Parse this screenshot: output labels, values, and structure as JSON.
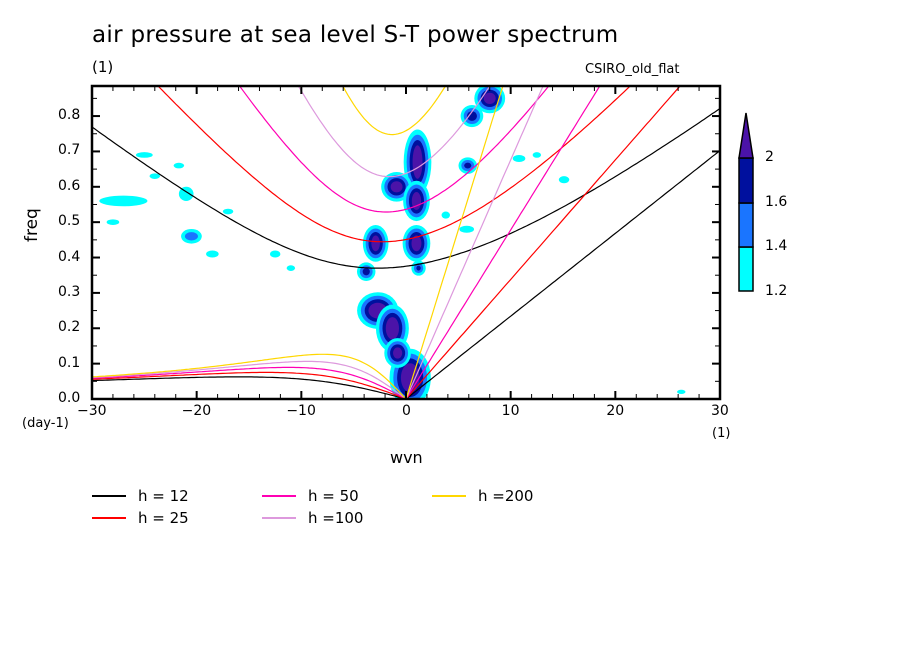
{
  "chart_data": {
    "type": "heatmap",
    "title": "air pressure at sea level S-T power spectrum",
    "subtitle_left": "(1)",
    "subtitle_right": "CSIRO_old_flat",
    "xlabel": "wvn",
    "ylabel": "freq",
    "x_units": "(1)",
    "y_units": "(day-1)",
    "xlim": [
      -30,
      30
    ],
    "ylim": [
      0,
      0.885
    ],
    "x_ticks": [
      -30,
      -20,
      -10,
      0,
      10,
      20,
      30
    ],
    "x_tick_labels": [
      "−30",
      "−20",
      "−10",
      "0",
      "10",
      "20",
      "30"
    ],
    "y_ticks": [
      0.0,
      0.1,
      0.2,
      0.3,
      0.4,
      0.5,
      0.6,
      0.7,
      0.8
    ],
    "y_tick_labels": [
      "0.0",
      "0.1",
      "0.2",
      "0.3",
      "0.4",
      "0.5",
      "0.6",
      "0.7",
      "0.8"
    ],
    "colorbar": {
      "levels": [
        1.2,
        1.4,
        1.6,
        2
      ],
      "level_labels": [
        "1.2",
        "1.4",
        "1.6",
        "2"
      ],
      "colors": [
        "#00ffff",
        "#1a75ff",
        "#00109e",
        "#4b13a8"
      ],
      "extend": "max"
    },
    "contour_blobs": [
      {
        "x": -2.7,
        "y": 0.25,
        "level": 3,
        "rx": 1.4,
        "ry": 0.035
      },
      {
        "x": -1.3,
        "y": 0.2,
        "level": 3,
        "rx": 1.0,
        "ry": 0.05
      },
      {
        "x": 0.4,
        "y": 0.06,
        "level": 3,
        "rx": 1.4,
        "ry": 0.065
      },
      {
        "x": -0.8,
        "y": 0.13,
        "level": 3,
        "rx": 0.7,
        "ry": 0.025
      },
      {
        "x": 1.1,
        "y": 0.67,
        "level": 3,
        "rx": 0.75,
        "ry": 0.075
      },
      {
        "x": -0.9,
        "y": 0.6,
        "level": 3,
        "rx": 0.9,
        "ry": 0.025
      },
      {
        "x": 1.0,
        "y": 0.56,
        "level": 3,
        "rx": 0.7,
        "ry": 0.04
      },
      {
        "x": -2.9,
        "y": 0.44,
        "level": 3,
        "rx": 0.65,
        "ry": 0.035
      },
      {
        "x": 1.0,
        "y": 0.44,
        "level": 3,
        "rx": 0.75,
        "ry": 0.035
      },
      {
        "x": 8.0,
        "y": 0.85,
        "level": 3,
        "rx": 0.9,
        "ry": 0.025
      },
      {
        "x": 6.3,
        "y": 0.8,
        "level": 2,
        "rx": 0.7,
        "ry": 0.02
      },
      {
        "x": 5.9,
        "y": 0.66,
        "level": 2,
        "rx": 0.5,
        "ry": 0.012
      },
      {
        "x": 1.2,
        "y": 0.37,
        "level": 2,
        "rx": 0.3,
        "ry": 0.01
      },
      {
        "x": -3.8,
        "y": 0.36,
        "level": 2,
        "rx": 0.5,
        "ry": 0.015
      },
      {
        "x": -20.5,
        "y": 0.46,
        "level": 1,
        "rx": 0.8,
        "ry": 0.015
      },
      {
        "x": -21.0,
        "y": 0.58,
        "level": 0,
        "rx": 0.7,
        "ry": 0.02
      },
      {
        "x": -28.0,
        "y": 0.5,
        "level": 0,
        "rx": 0.6,
        "ry": 0.008
      },
      {
        "x": -27.0,
        "y": 0.56,
        "level": 0,
        "rx": 2.3,
        "ry": 0.015
      },
      {
        "x": -25.0,
        "y": 0.69,
        "level": 0,
        "rx": 0.8,
        "ry": 0.008
      },
      {
        "x": -24.0,
        "y": 0.63,
        "level": 0,
        "rx": 0.5,
        "ry": 0.008
      },
      {
        "x": -21.7,
        "y": 0.66,
        "level": 0,
        "rx": 0.5,
        "ry": 0.008
      },
      {
        "x": -17.0,
        "y": 0.53,
        "level": 0,
        "rx": 0.5,
        "ry": 0.008
      },
      {
        "x": -18.5,
        "y": 0.41,
        "level": 0,
        "rx": 0.6,
        "ry": 0.01
      },
      {
        "x": -12.5,
        "y": 0.41,
        "level": 0,
        "rx": 0.5,
        "ry": 0.01
      },
      {
        "x": -11.0,
        "y": 0.37,
        "level": 0,
        "rx": 0.4,
        "ry": 0.008
      },
      {
        "x": 3.8,
        "y": 0.52,
        "level": 0,
        "rx": 0.4,
        "ry": 0.01
      },
      {
        "x": 5.8,
        "y": 0.48,
        "level": 0,
        "rx": 0.7,
        "ry": 0.01
      },
      {
        "x": 10.8,
        "y": 0.68,
        "level": 0,
        "rx": 0.6,
        "ry": 0.01
      },
      {
        "x": 15.1,
        "y": 0.62,
        "level": 0,
        "rx": 0.5,
        "ry": 0.01
      },
      {
        "x": 12.5,
        "y": 0.69,
        "level": 0,
        "rx": 0.4,
        "ry": 0.008
      },
      {
        "x": 26.3,
        "y": 0.02,
        "level": 0,
        "rx": 0.4,
        "ry": 0.006
      }
    ],
    "dispersion_curves": {
      "equivalent_depths": [
        12,
        25,
        50,
        100,
        200
      ],
      "colors": {
        "12": "#000000",
        "25": "#ff0000",
        "50": "#ff00b4",
        "100": "#dd99dd",
        "200": "#ffd700"
      },
      "families": [
        "kelvin",
        "inertia-gravity n=1",
        "equatorial rossby n=1"
      ]
    },
    "legend": [
      {
        "label": "h = 12",
        "color": "#000000"
      },
      {
        "label": "h = 25",
        "color": "#ff0000"
      },
      {
        "label": "h = 50",
        "color": "#ff00b4"
      },
      {
        "label": "h =100",
        "color": "#dd99dd"
      },
      {
        "label": "h =200",
        "color": "#ffd700"
      }
    ],
    "legend_placement": "bottom"
  }
}
